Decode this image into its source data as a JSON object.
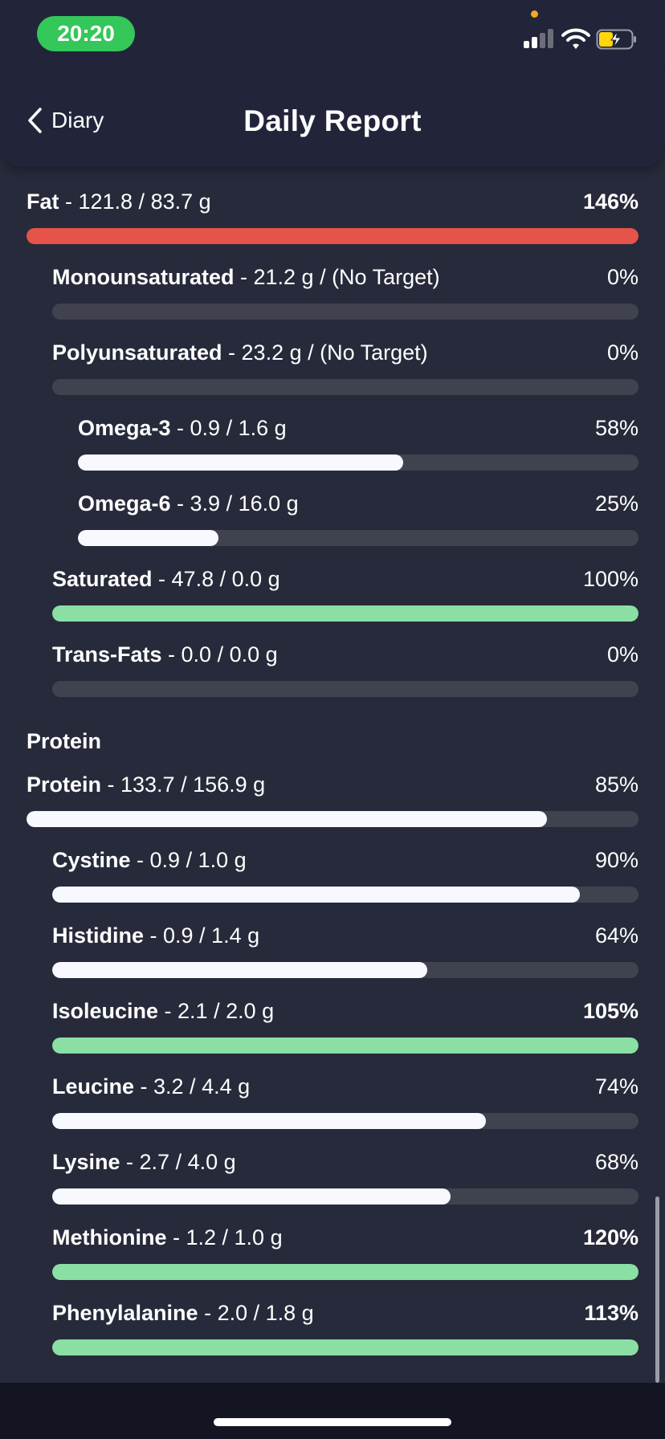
{
  "status_bar": {
    "time": "20:20"
  },
  "header": {
    "back_label": "Diary",
    "title": "Daily Report"
  },
  "colors": {
    "over_target": "#e5534b",
    "target_met": "#8ae0a4",
    "in_progress": "#f8f9ff",
    "track": "#40434f"
  },
  "fat_rows": [
    {
      "name": "Fat",
      "amount": " - 121.8 / 83.7 g",
      "percent": "146%",
      "fraction": 1.0,
      "status": "over"
    },
    {
      "name": "Monounsaturated",
      "amount": " - 21.2 g / (No Target)",
      "percent": "0%",
      "fraction": 0,
      "status": "progress"
    },
    {
      "name": "Polyunsaturated",
      "amount": " - 23.2 g / (No Target)",
      "percent": "0%",
      "fraction": 0,
      "status": "progress"
    },
    {
      "name": "Omega-3",
      "amount": " - 0.9 / 1.6 g",
      "percent": "58%",
      "fraction": 0.58,
      "status": "progress"
    },
    {
      "name": "Omega-6",
      "amount": " - 3.9 / 16.0 g",
      "percent": "25%",
      "fraction": 0.25,
      "status": "progress"
    },
    {
      "name": "Saturated",
      "amount": " - 47.8 / 0.0 g",
      "percent": "100%",
      "fraction": 1.0,
      "status": "met"
    },
    {
      "name": "Trans-Fats",
      "amount": " - 0.0 / 0.0 g",
      "percent": "0%",
      "fraction": 0,
      "status": "progress"
    }
  ],
  "protein_section": {
    "title": "Protein"
  },
  "protein_rows": [
    {
      "name": "Protein",
      "amount": " - 133.7 / 156.9 g",
      "percent": "85%",
      "fraction": 0.85,
      "status": "progress"
    },
    {
      "name": "Cystine",
      "amount": " - 0.9 / 1.0 g",
      "percent": "90%",
      "fraction": 0.9,
      "status": "progress"
    },
    {
      "name": "Histidine",
      "amount": " - 0.9 / 1.4 g",
      "percent": "64%",
      "fraction": 0.64,
      "status": "progress"
    },
    {
      "name": "Isoleucine",
      "amount": " - 2.1 / 2.0 g",
      "percent": "105%",
      "fraction": 1.0,
      "status": "met"
    },
    {
      "name": "Leucine",
      "amount": " - 3.2 / 4.4 g",
      "percent": "74%",
      "fraction": 0.74,
      "status": "progress"
    },
    {
      "name": "Lysine",
      "amount": " - 2.7 / 4.0 g",
      "percent": "68%",
      "fraction": 0.68,
      "status": "progress"
    },
    {
      "name": "Methionine",
      "amount": " - 1.2 / 1.0 g",
      "percent": "120%",
      "fraction": 1.0,
      "status": "met"
    },
    {
      "name": "Phenylalanine",
      "amount": " - 2.0 / 1.8 g",
      "percent": "113%",
      "fraction": 1.0,
      "status": "met"
    }
  ]
}
